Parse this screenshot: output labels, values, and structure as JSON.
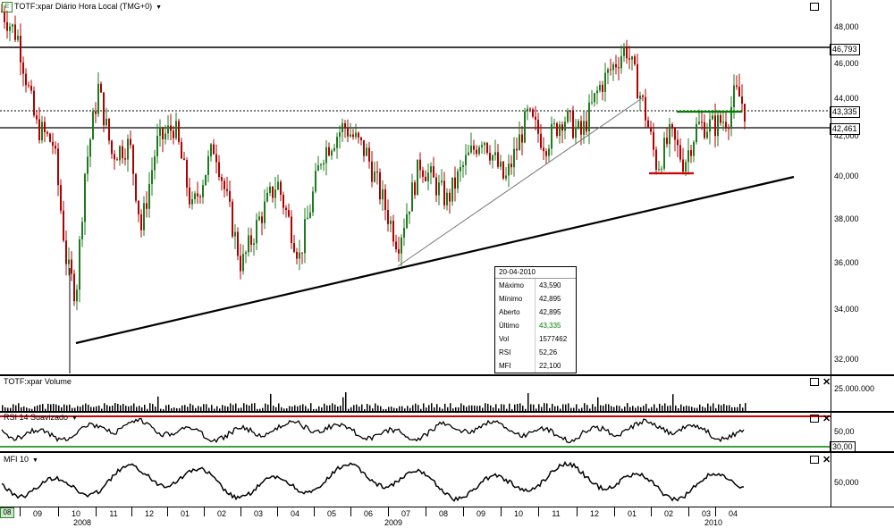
{
  "main": {
    "title": "TOTF:xpar Diário Hora Local (TMG+0)",
    "badge": "E",
    "y_ticks": [
      "48,000",
      "46,000",
      "44,000",
      "42,000",
      "40,000",
      "38,000",
      "36,000",
      "34,000",
      "32,000"
    ],
    "tags": {
      "resistance": "46,793",
      "last": "43,335",
      "support": "42,461"
    }
  },
  "volume": {
    "title": "TOTF:xpar Volume",
    "tick": "25.000.000"
  },
  "rsi": {
    "title": "RSI 14 Suavizado",
    "tick": "50,00",
    "tag": "30,00"
  },
  "mfi": {
    "title": "MFI 10",
    "tick": "50,000"
  },
  "info": {
    "date": "20-04-2010",
    "rows": [
      {
        "k": "Máximo",
        "v": "43,590"
      },
      {
        "k": "Mínimo",
        "v": "42,895"
      },
      {
        "k": "Aberto",
        "v": "42,895"
      },
      {
        "k": "Último",
        "v": "43,335"
      },
      {
        "k": "Vol",
        "v": "1577462"
      },
      {
        "k": "RSI",
        "v": "52,26"
      },
      {
        "k": "MFI",
        "v": "22,100"
      }
    ]
  },
  "xaxis": {
    "start_label": "08",
    "months": [
      "09",
      "10",
      "11",
      "12",
      "01",
      "02",
      "03",
      "04",
      "05",
      "06",
      "07",
      "08",
      "09",
      "10",
      "11",
      "12",
      "01",
      "02",
      "03",
      "04"
    ],
    "years": [
      "2008",
      "2009",
      "2010"
    ]
  },
  "colors": {
    "up": "#1f7a1f",
    "down": "#b00000",
    "trend": "#000000",
    "rsi_high": "#d00000",
    "rsi_low": "#008000",
    "support_red": "#d00000",
    "resistance_green": "#008000"
  }
}
